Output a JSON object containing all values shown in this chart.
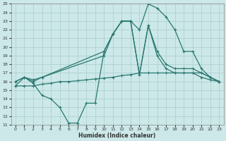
{
  "xlabel": "Humidex (Indice chaleur)",
  "bg_color": "#cce8e8",
  "grid_color": "#aacccc",
  "line_color": "#2a7870",
  "ylim": [
    11,
    25
  ],
  "xlim": [
    -0.5,
    23.5
  ],
  "yticks": [
    11,
    12,
    13,
    14,
    15,
    16,
    17,
    18,
    19,
    20,
    21,
    22,
    23,
    24,
    25
  ],
  "xticks": [
    0,
    1,
    2,
    3,
    4,
    5,
    6,
    7,
    8,
    9,
    10,
    11,
    12,
    13,
    14,
    15,
    16,
    17,
    18,
    19,
    20,
    21,
    22,
    23
  ],
  "line1_x": [
    0,
    1,
    2,
    3,
    10,
    11,
    12,
    13,
    14,
    15,
    16,
    17,
    18,
    19,
    20,
    21,
    22,
    23
  ],
  "line1_y": [
    16.0,
    16.5,
    16.0,
    16.5,
    19.5,
    21.5,
    23.0,
    23.0,
    22.0,
    25.0,
    24.5,
    23.5,
    22.0,
    19.5,
    19.5,
    17.5,
    16.5,
    16.0
  ],
  "line2_x": [
    0,
    1,
    2,
    3,
    10,
    11,
    12,
    13,
    14,
    15,
    16,
    17,
    18,
    19,
    20,
    21,
    22,
    23
  ],
  "line2_y": [
    16.0,
    16.5,
    16.2,
    16.5,
    19.0,
    21.5,
    23.0,
    23.0,
    16.8,
    22.5,
    19.5,
    18.0,
    17.5,
    17.5,
    17.5,
    17.0,
    16.5,
    16.0
  ],
  "line3_x": [
    0,
    1,
    2,
    3,
    4,
    5,
    6,
    7,
    8,
    9,
    10,
    11,
    12,
    13,
    14,
    15,
    16,
    17,
    18,
    19,
    20,
    21,
    22,
    23
  ],
  "line3_y": [
    15.5,
    16.5,
    15.8,
    14.4,
    14.0,
    13.0,
    11.2,
    11.2,
    13.5,
    13.5,
    19.5,
    21.5,
    23.0,
    23.0,
    16.8,
    22.5,
    19.0,
    17.5,
    17.0,
    17.0,
    17.0,
    17.0,
    16.5,
    16.0
  ],
  "line4_x": [
    0,
    1,
    2,
    3,
    4,
    5,
    6,
    7,
    8,
    9,
    10,
    11,
    12,
    13,
    14,
    15,
    16,
    17,
    18,
    19,
    20,
    21,
    22,
    23
  ],
  "line4_y": [
    15.5,
    15.5,
    15.5,
    15.7,
    15.8,
    16.0,
    16.0,
    16.1,
    16.2,
    16.3,
    16.4,
    16.5,
    16.7,
    16.8,
    17.0,
    17.0,
    17.0,
    17.0,
    17.0,
    17.0,
    17.0,
    16.5,
    16.2,
    16.0
  ]
}
